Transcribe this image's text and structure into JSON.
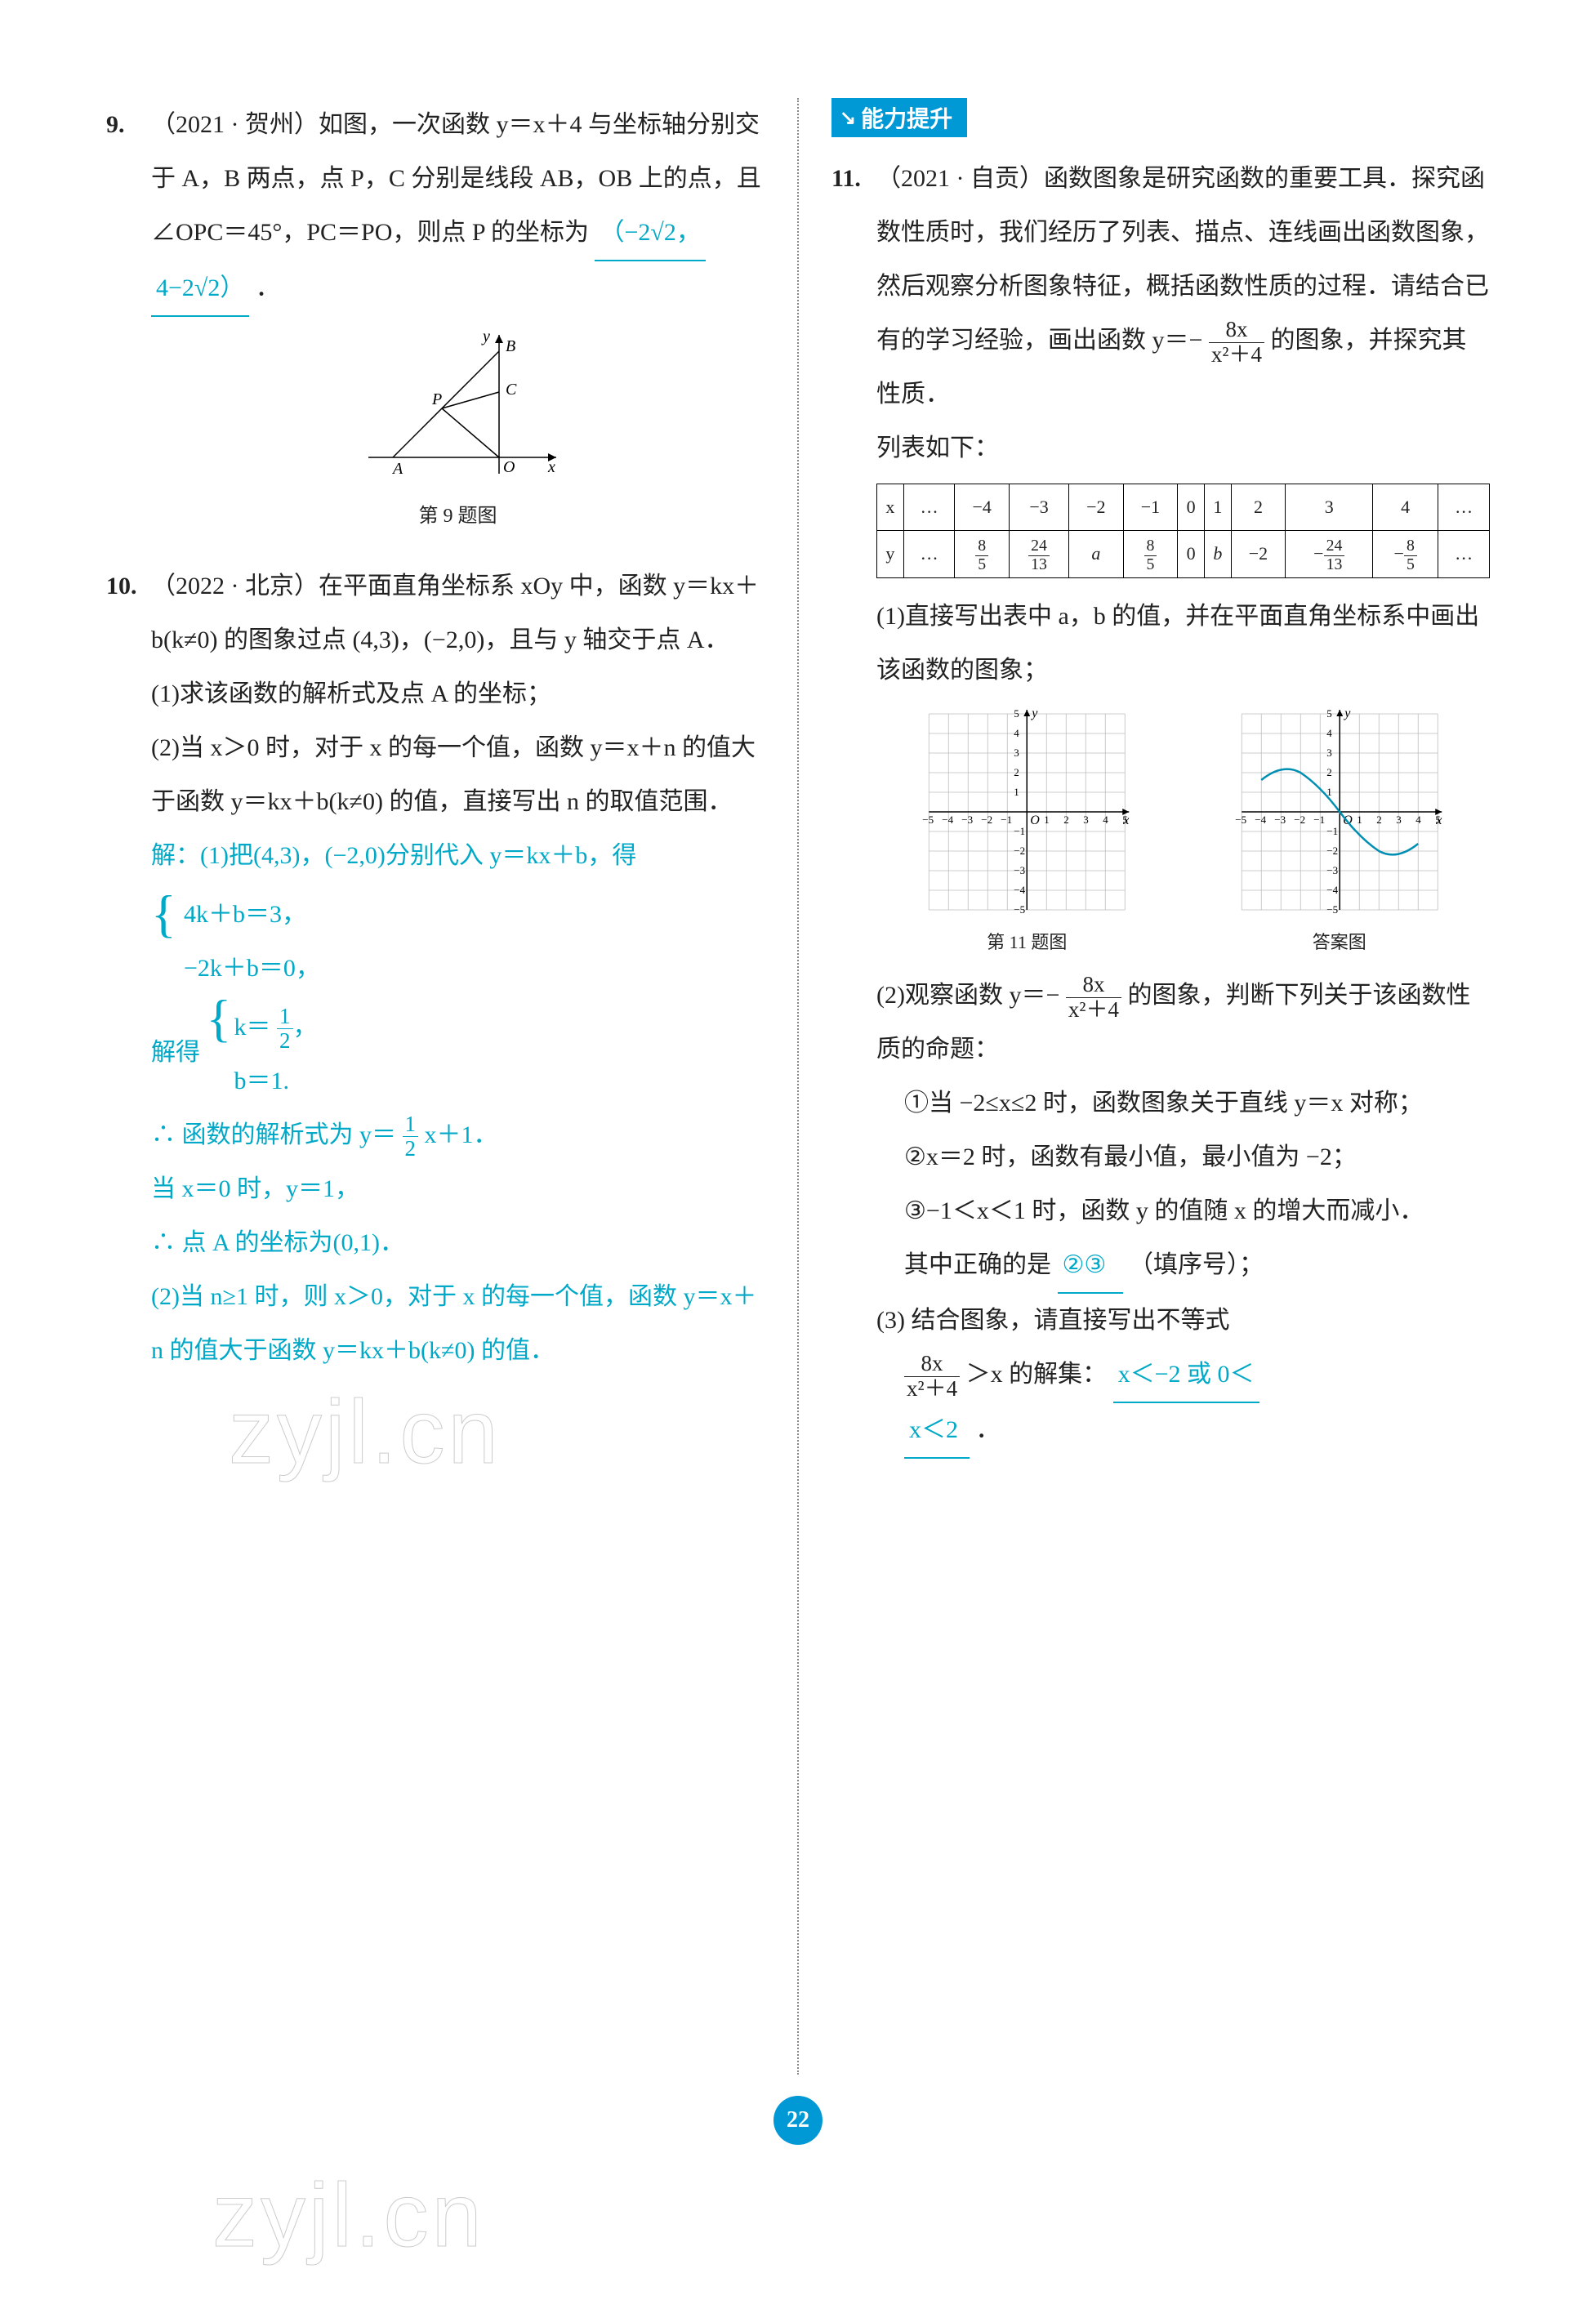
{
  "left": {
    "q9": {
      "num": "9.",
      "src": "（2021 · 贺州）如图，一次函数 y＝x＋4 与坐标轴分别交于 A，B 两点，点 P，C 分别是线段 AB，OB 上的点，且 ∠OPC＝45°，PC＝PO，则点 P 的坐标为",
      "ans1": "（−2√2，",
      "ans2": "4−2√2）",
      "caption": "第 9 题图",
      "fig": {
        "bg": "#ffffff",
        "axis_color": "#000000",
        "line_color": "#000000",
        "label_font": 20,
        "A": "A",
        "B": "B",
        "C": "C",
        "O": "O",
        "P": "P",
        "x": "x",
        "y": "y"
      }
    },
    "q10": {
      "num": "10.",
      "src": "（2022 · 北京）在平面直角坐标系 xOy 中，函数 y＝kx＋b(k≠0) 的图象过点 (4,3)，(−2,0)，且与 y 轴交于点 A．",
      "p1": "(1)求该函数的解析式及点 A 的坐标；",
      "p2a": "(2)当 x＞0 时，对于 x 的每一个值，函数 y＝x＋n 的值大于函数 y＝kx＋b(k≠0) 的值，直接写出 n 的取值范围．",
      "sol1": "解：(1)把(4,3)，(−2,0)分别代入 y＝kx＋b，得",
      "sys1a": "4k＋b＝3，",
      "sys1b": "−2k＋b＝0，",
      "sol2": "解得",
      "sys2a": "k＝",
      "sys2a_frac_n": "1",
      "sys2a_frac_d": "2",
      "sys2b": "b＝1.",
      "sol3": "∴ 函数的解析式为 y＝",
      "sol3_frac_n": "1",
      "sol3_frac_d": "2",
      "sol3b": "x＋1．",
      "sol4": "当 x＝0 时，y＝1，",
      "sol5": "∴ 点 A 的坐标为(0,1)．",
      "sol6": "(2)当 n≥1 时，则 x＞0，对于 x 的每一个值，函数 y＝x＋n 的值大于函数 y＝kx＋b(k≠0) 的值．"
    }
  },
  "right": {
    "badge": "能力提升",
    "q11": {
      "num": "11.",
      "src": "（2021 · 自贡）函数图象是研究函数的重要工具．探究函数性质时，我们经历了列表、描点、连线画出函数图象，然后观察分析图象特征，概括函数性质的过程．请结合已有的学习经验，画出函数",
      "func_pre": "y＝−",
      "func_num": "8x",
      "func_den": "x²＋4",
      "src2": "的图象，并探究其性质．",
      "list_label": "列表如下：",
      "table": {
        "head_x": "x",
        "head_y": "y",
        "cols_x": [
          "…",
          "−4",
          "−3",
          "−2",
          "−1",
          "0",
          "1",
          "2",
          "3",
          "4",
          "…"
        ],
        "cols_y_plain": [
          "…",
          "",
          "",
          "a",
          "",
          "0",
          "b",
          "−2",
          "",
          "",
          "…"
        ],
        "fracs": {
          "1": {
            "n": "8",
            "d": "5"
          },
          "2": {
            "n": "24",
            "d": "13"
          },
          "4": {
            "n": "8",
            "d": "5"
          },
          "8": {
            "sign": "−",
            "n": "24",
            "d": "13"
          },
          "9": {
            "sign": "−",
            "n": "8",
            "d": "5"
          }
        }
      },
      "p1": "(1)直接写出表中 a，b 的值，并在平面直角坐标系中画出该函数的图象；",
      "graph": {
        "bg": "#ffffff",
        "grid_color": "#bdbdbd",
        "dot_color": "#666666",
        "axis_color": "#000000",
        "curve_color": "#008fb3",
        "xlim": [
          -5,
          5
        ],
        "ylim": [
          -5,
          5
        ],
        "tick_step": 1,
        "label_font": 18,
        "x_label": "x",
        "y_label": "y",
        "O": "O",
        "cap_left": "第 11 题图",
        "cap_right": "答案图"
      },
      "p2_lead": "(2)观察函数 y＝−",
      "p2_num": "8x",
      "p2_den": "x²＋4",
      "p2_tail": "的图象，判断下列关于该函数性质的命题：",
      "c1": "①当 −2≤x≤2 时，函数图象关于直线 y＝x 对称；",
      "c2": "②x＝2 时，函数有最小值，最小值为 −2；",
      "c3": "③−1＜x＜1 时，函数 y 的值随 x 的增大而减小．",
      "p2_ans_label": "其中正确的是",
      "p2_ans": "②③",
      "p2_ans_tail": "（填序号）；",
      "p3_lead": "(3) 结合图象，请直接写出不等式",
      "p3_num": "8x",
      "p3_den": "x²＋4",
      "p3_mid": "＞x 的解集：",
      "p3_ans1": "x＜−2 或 0＜",
      "p3_ans2": "x＜2",
      "period": "．"
    }
  },
  "page_number": "22",
  "watermark": "zyjl.cn"
}
